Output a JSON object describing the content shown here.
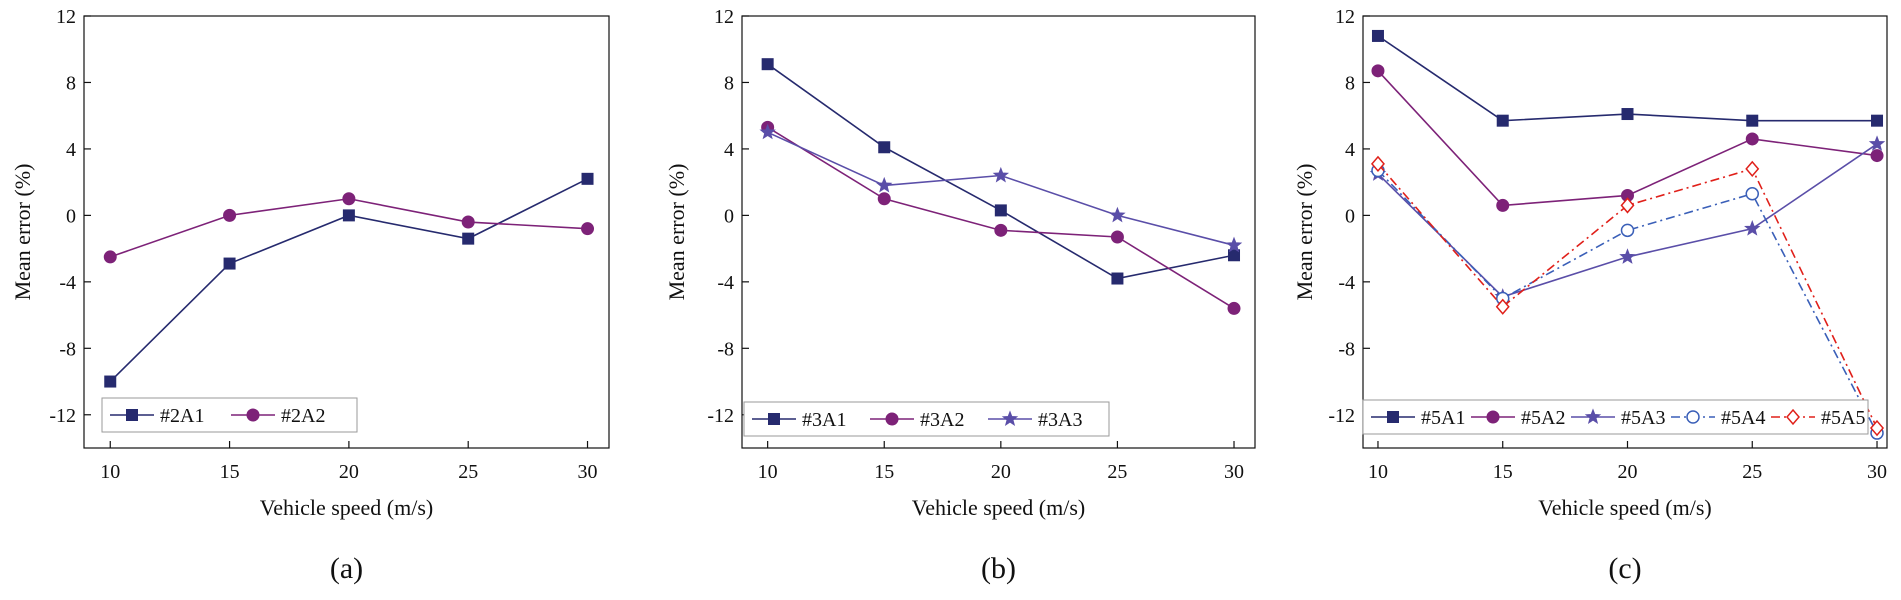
{
  "figure": {
    "panels": [
      "(a)",
      "(b)",
      "(c)"
    ]
  },
  "chart_data": [
    {
      "type": "line",
      "panel_label": "(a)",
      "xlabel": "Vehicle speed (m/s)",
      "ylabel": "Mean error (%)",
      "x": [
        10,
        15,
        20,
        25,
        30
      ],
      "x_ticks": [
        10,
        15,
        20,
        25,
        30
      ],
      "y_ticks": [
        -12,
        -8,
        -4,
        0,
        4,
        8,
        12
      ],
      "xlim": [
        8.9,
        30.9
      ],
      "ylim": [
        -14,
        12
      ],
      "legend_position": "bottom-left",
      "series": [
        {
          "name": "#2A1",
          "values": [
            -10.0,
            -2.9,
            0.0,
            -1.4,
            2.2
          ],
          "color": "#262a6e",
          "marker": "square-filled",
          "dash": "solid"
        },
        {
          "name": "#2A2",
          "values": [
            -2.5,
            0.0,
            1.0,
            -0.4,
            -0.8
          ],
          "color": "#7d2278",
          "marker": "circle-filled",
          "dash": "solid"
        }
      ]
    },
    {
      "type": "line",
      "panel_label": "(b)",
      "xlabel": "Vehicle speed (m/s)",
      "ylabel": "Mean error (%)",
      "x": [
        10,
        15,
        20,
        25,
        30
      ],
      "x_ticks": [
        10,
        15,
        20,
        25,
        30
      ],
      "y_ticks": [
        -12,
        -8,
        -4,
        0,
        4,
        8,
        12
      ],
      "xlim": [
        8.9,
        30.9
      ],
      "ylim": [
        -14,
        12
      ],
      "legend_position": "bottom-left",
      "series": [
        {
          "name": "#3A1",
          "values": [
            9.1,
            4.1,
            0.3,
            -3.8,
            -2.4
          ],
          "color": "#262a6e",
          "marker": "square-filled",
          "dash": "solid"
        },
        {
          "name": "#3A2",
          "values": [
            5.3,
            1.0,
            -0.9,
            -1.3,
            -5.6
          ],
          "color": "#7d2278",
          "marker": "circle-filled",
          "dash": "solid"
        },
        {
          "name": "#3A3",
          "values": [
            5.0,
            1.8,
            2.4,
            0.0,
            -1.8
          ],
          "color": "#5a4ea8",
          "marker": "star-filled",
          "dash": "solid"
        }
      ]
    },
    {
      "type": "line",
      "panel_label": "(c)",
      "xlabel": "Vehicle speed (m/s)",
      "ylabel": "Mean error (%)",
      "x": [
        10,
        15,
        20,
        25,
        30
      ],
      "x_ticks": [
        10,
        15,
        20,
        25,
        30
      ],
      "y_ticks": [
        -12,
        -8,
        -4,
        0,
        4,
        8,
        12
      ],
      "xlim": [
        9.4,
        30.4
      ],
      "ylim": [
        -14,
        12
      ],
      "legend_position": "bottom",
      "series": [
        {
          "name": "#5A1",
          "values": [
            10.8,
            5.7,
            6.1,
            5.7,
            5.7
          ],
          "color": "#262a6e",
          "marker": "square-filled",
          "dash": "solid"
        },
        {
          "name": "#5A2",
          "values": [
            8.7,
            0.6,
            1.2,
            4.6,
            3.6
          ],
          "color": "#7d2278",
          "marker": "circle-filled",
          "dash": "solid"
        },
        {
          "name": "#5A3",
          "values": [
            2.5,
            -4.9,
            -2.5,
            -0.8,
            4.3
          ],
          "color": "#5a4ea8",
          "marker": "star-filled",
          "dash": "solid"
        },
        {
          "name": "#5A4",
          "values": [
            2.7,
            -5.0,
            -0.9,
            1.3,
            -13.1
          ],
          "color": "#3a5fb8",
          "marker": "circle-open",
          "dash": "dashdot"
        },
        {
          "name": "#5A5",
          "values": [
            3.1,
            -5.5,
            0.6,
            2.8,
            -12.8
          ],
          "color": "#e0201a",
          "marker": "diamond-open",
          "dash": "dashdot"
        }
      ]
    }
  ]
}
